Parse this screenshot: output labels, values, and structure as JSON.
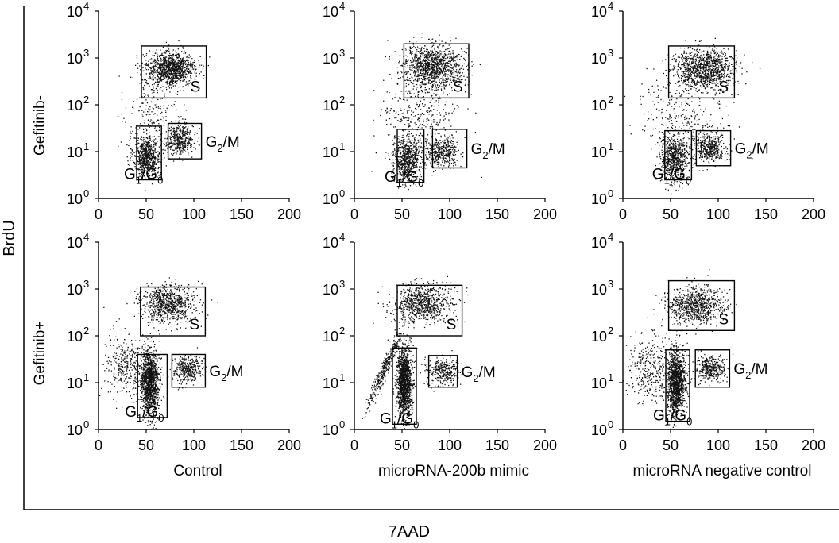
{
  "figure": {
    "y_axis_label": "BrdU",
    "x_axis_label": "7AAD",
    "row_labels": [
      "Gefitinib-",
      "Gefitinib+"
    ],
    "column_labels": [
      "Control",
      "microRNA-200b mimic",
      "microRNA negative control"
    ]
  },
  "chart_data": [
    {
      "type": "scatter",
      "row": "Gefitinib-",
      "column": "Control",
      "xlabel": "Control",
      "ylabel": "",
      "xlim": [
        0,
        200
      ],
      "xticks": [
        0,
        50,
        100,
        150,
        200
      ],
      "ylim": [
        1,
        10000
      ],
      "yscale": "log",
      "ytick_labels": [
        "10^0",
        "10^1",
        "10^2",
        "10^3",
        "10^4"
      ],
      "grid": false,
      "clusters": [
        {
          "name": "G1/G0",
          "center": [
            50,
            8
          ],
          "spread": [
            7,
            0.22
          ],
          "count": 650
        },
        {
          "name": "G2/M",
          "center": [
            85,
            18
          ],
          "spread": [
            7,
            0.16
          ],
          "count": 400
        },
        {
          "name": "S",
          "center": [
            75,
            600
          ],
          "spread": [
            13,
            0.18
          ],
          "count": 1100
        },
        {
          "name": "scatter",
          "center": [
            58,
            50
          ],
          "spread": [
            15,
            0.45
          ],
          "count": 250
        }
      ],
      "gates": [
        {
          "label": "G1/G0",
          "x": [
            40,
            66
          ],
          "y": [
            2.5,
            35
          ]
        },
        {
          "label": "G2/M",
          "x": [
            73,
            108
          ],
          "y": [
            7,
            40
          ]
        },
        {
          "label": "S",
          "x": [
            45,
            113
          ],
          "y": [
            140,
            1800
          ]
        }
      ]
    },
    {
      "type": "scatter",
      "row": "Gefitinib-",
      "column": "microRNA-200b mimic",
      "xlabel": "microRNA-200b mimic",
      "ylabel": "",
      "xlim": [
        0,
        200
      ],
      "xticks": [
        0,
        50,
        100,
        150,
        200
      ],
      "ylim": [
        1,
        10000
      ],
      "yscale": "log",
      "ytick_labels": [
        "10^0",
        "10^1",
        "10^2",
        "10^3",
        "10^4"
      ],
      "grid": false,
      "clusters": [
        {
          "name": "G1/G0",
          "center": [
            55,
            7
          ],
          "spread": [
            7,
            0.25
          ],
          "count": 700
        },
        {
          "name": "G2/M",
          "center": [
            92,
            10
          ],
          "spread": [
            9,
            0.14
          ],
          "count": 400
        },
        {
          "name": "S",
          "center": [
            82,
            700
          ],
          "spread": [
            16,
            0.22
          ],
          "count": 1100
        },
        {
          "name": "scatter",
          "center": [
            70,
            60
          ],
          "spread": [
            20,
            0.5
          ],
          "count": 400
        }
      ],
      "gates": [
        {
          "label": "G1/G0",
          "x": [
            45,
            73
          ],
          "y": [
            2.2,
            30
          ]
        },
        {
          "label": "G2/M",
          "x": [
            82,
            118
          ],
          "y": [
            4.5,
            30
          ]
        },
        {
          "label": "S",
          "x": [
            52,
            120
          ],
          "y": [
            140,
            2000
          ]
        }
      ]
    },
    {
      "type": "scatter",
      "row": "Gefitinib-",
      "column": "microRNA negative control",
      "xlabel": "microRNA negative control",
      "ylabel": "",
      "xlim": [
        0,
        200
      ],
      "xticks": [
        0,
        50,
        100,
        150,
        200
      ],
      "ylim": [
        1,
        10000
      ],
      "yscale": "log",
      "ytick_labels": [
        "10^0",
        "10^1",
        "10^2",
        "10^3",
        "10^4"
      ],
      "grid": false,
      "clusters": [
        {
          "name": "G1/G0",
          "center": [
            53,
            7
          ],
          "spread": [
            7,
            0.25
          ],
          "count": 650
        },
        {
          "name": "G2/M",
          "center": [
            90,
            12
          ],
          "spread": [
            8,
            0.15
          ],
          "count": 400
        },
        {
          "name": "S",
          "center": [
            85,
            600
          ],
          "spread": [
            16,
            0.2
          ],
          "count": 1100
        },
        {
          "name": "scatter",
          "center": [
            62,
            55
          ],
          "spread": [
            22,
            0.5
          ],
          "count": 350
        }
      ],
      "gates": [
        {
          "label": "G1/G0",
          "x": [
            44,
            72
          ],
          "y": [
            2.5,
            28
          ]
        },
        {
          "label": "G2/M",
          "x": [
            77,
            113
          ],
          "y": [
            5,
            28
          ]
        },
        {
          "label": "S",
          "x": [
            48,
            117
          ],
          "y": [
            140,
            1800
          ]
        }
      ]
    },
    {
      "type": "scatter",
      "row": "Gefitinib+",
      "column": "Control",
      "xlabel": "Control",
      "ylabel": "",
      "xlim": [
        0,
        200
      ],
      "xticks": [
        0,
        50,
        100,
        150,
        200
      ],
      "ylim": [
        1,
        10000
      ],
      "yscale": "log",
      "ytick_labels": [
        "10^0",
        "10^1",
        "10^2",
        "10^3",
        "10^4"
      ],
      "grid": false,
      "clusters": [
        {
          "name": "G1/G0",
          "center": [
            53,
            10
          ],
          "spread": [
            5,
            0.35
          ],
          "count": 1300
        },
        {
          "name": "G2/M",
          "center": [
            92,
            20
          ],
          "spread": [
            8,
            0.15
          ],
          "count": 350
        },
        {
          "name": "S",
          "center": [
            72,
            480
          ],
          "spread": [
            14,
            0.2
          ],
          "count": 800
        },
        {
          "name": "scatter",
          "center": [
            30,
            25
          ],
          "spread": [
            12,
            0.35
          ],
          "count": 350
        }
      ],
      "gates": [
        {
          "label": "G1/G0",
          "x": [
            41,
            72
          ],
          "y": [
            1.8,
            40
          ]
        },
        {
          "label": "G2/M",
          "x": [
            77,
            112
          ],
          "y": [
            8,
            40
          ]
        },
        {
          "label": "S",
          "x": [
            44,
            112
          ],
          "y": [
            100,
            1100
          ]
        }
      ]
    },
    {
      "type": "scatter",
      "row": "Gefitinib+",
      "column": "microRNA-200b mimic",
      "xlabel": "microRNA-200b mimic",
      "ylabel": "",
      "xlim": [
        0,
        200
      ],
      "xticks": [
        0,
        50,
        100,
        150,
        200
      ],
      "ylim": [
        1,
        10000
      ],
      "yscale": "log",
      "ytick_labels": [
        "10^0",
        "10^1",
        "10^2",
        "10^3",
        "10^4"
      ],
      "grid": false,
      "clusters": [
        {
          "name": "G1/G0",
          "center": [
            52,
            10
          ],
          "spread": [
            4,
            0.38
          ],
          "count": 1400
        },
        {
          "name": "G2/M",
          "center": [
            92,
            18
          ],
          "spread": [
            9,
            0.14
          ],
          "count": 300
        },
        {
          "name": "S",
          "center": [
            70,
            500
          ],
          "spread": [
            15,
            0.2
          ],
          "count": 800
        },
        {
          "name": "diagonal",
          "center": [
            30,
            18
          ],
          "spread": [
            9,
            0.35
          ],
          "count": 350
        }
      ],
      "gates": [
        {
          "label": "G1/G0",
          "x": [
            40,
            65
          ],
          "y": [
            1.3,
            55
          ]
        },
        {
          "label": "G2/M",
          "x": [
            78,
            108
          ],
          "y": [
            8,
            38
          ]
        },
        {
          "label": "S",
          "x": [
            45,
            113
          ],
          "y": [
            100,
            1200
          ]
        }
      ]
    },
    {
      "type": "scatter",
      "row": "Gefitinib+",
      "column": "microRNA negative control",
      "xlabel": "microRNA negative control",
      "ylabel": "",
      "xlim": [
        0,
        200
      ],
      "xticks": [
        0,
        50,
        100,
        150,
        200
      ],
      "ylim": [
        1,
        10000
      ],
      "yscale": "log",
      "ytick_labels": [
        "10^0",
        "10^1",
        "10^2",
        "10^3",
        "10^4"
      ],
      "grid": false,
      "clusters": [
        {
          "name": "G1/G0",
          "center": [
            55,
            10
          ],
          "spread": [
            5,
            0.35
          ],
          "count": 1300
        },
        {
          "name": "G2/M",
          "center": [
            92,
            20
          ],
          "spread": [
            8,
            0.14
          ],
          "count": 350
        },
        {
          "name": "S",
          "center": [
            75,
            450
          ],
          "spread": [
            15,
            0.2
          ],
          "count": 800
        },
        {
          "name": "scatter",
          "center": [
            30,
            20
          ],
          "spread": [
            12,
            0.35
          ],
          "count": 350
        }
      ],
      "gates": [
        {
          "label": "G1/G0",
          "x": [
            45,
            70
          ],
          "y": [
            1.5,
            50
          ]
        },
        {
          "label": "G2/M",
          "x": [
            76,
            112
          ],
          "y": [
            8,
            50
          ]
        },
        {
          "label": "S",
          "x": [
            48,
            117
          ],
          "y": [
            130,
            1500
          ]
        }
      ]
    }
  ]
}
